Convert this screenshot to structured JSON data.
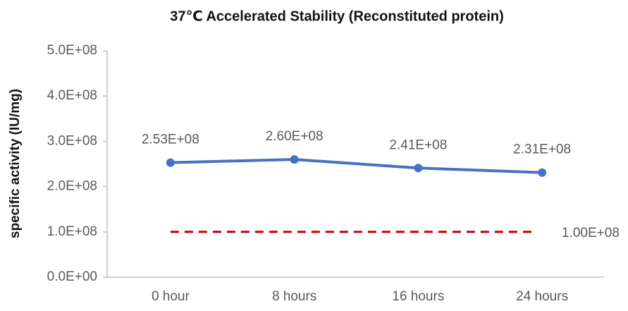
{
  "chart_data": {
    "type": "line",
    "title": "37℃ Accelerated Stability (Reconstituted protein)",
    "y_label": "specific activity (IU/mg)",
    "categories": [
      "0 hour",
      "8 hours",
      "16 hours",
      "24 hours"
    ],
    "values": [
      253000000,
      260000000,
      241000000,
      231000000
    ],
    "value_labels": [
      "2.53E+08",
      "2.60E+08",
      "2.41E+08",
      "2.31E+08"
    ],
    "color": "#4472c4",
    "reference_line": {
      "value": 100000000,
      "label": "1.00E+08",
      "color": "#c00000",
      "dashed": true
    },
    "ylim": [
      0,
      500000000
    ],
    "yticks": [
      {
        "value": 0,
        "label": "0.0E+00"
      },
      {
        "value": 100000000,
        "label": "1.0E+08"
      },
      {
        "value": 200000000,
        "label": "2.0E+08"
      },
      {
        "value": 300000000,
        "label": "3.0E+08"
      },
      {
        "value": 400000000,
        "label": "4.0E+08"
      },
      {
        "value": 500000000,
        "label": "5.0E+08"
      }
    ],
    "grid": false
  }
}
